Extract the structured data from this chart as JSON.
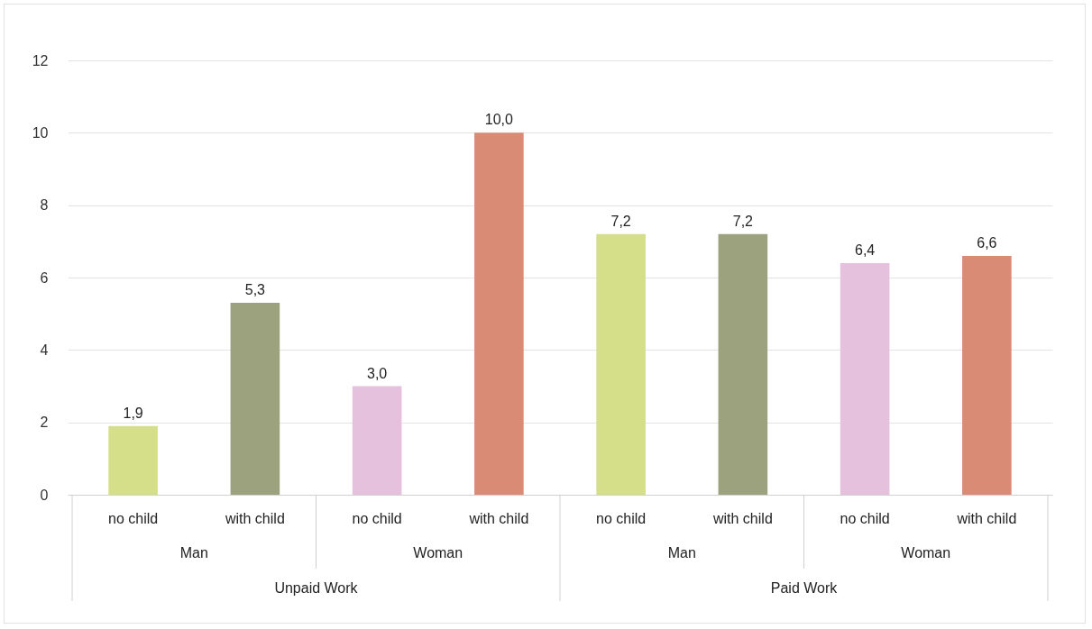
{
  "chart_data": {
    "type": "bar",
    "categories": [
      "no child",
      "with child",
      "no child",
      "with child",
      "no child",
      "with child",
      "no child",
      "with child"
    ],
    "values": [
      1.9,
      5.3,
      3.0,
      10.0,
      7.2,
      7.2,
      6.4,
      6.6
    ],
    "colors": [
      "#d5df8a",
      "#9ca27e",
      "#e6c1de",
      "#d98b76",
      "#d5df8a",
      "#9ca27e",
      "#e6c1de",
      "#d98b76"
    ],
    "value_labels": [
      "1,9",
      "5,3",
      "3,0",
      "10,0",
      "7,2",
      "7,2",
      "6,4",
      "6,6"
    ],
    "annotations": [
      "Man",
      "Woman",
      "Man",
      "Woman",
      "Unpaid Work",
      "Paid Work"
    ],
    "ylim": [
      0,
      12
    ],
    "yticks": [
      0,
      2,
      4,
      6,
      8,
      10,
      12
    ],
    "grid": "y"
  }
}
